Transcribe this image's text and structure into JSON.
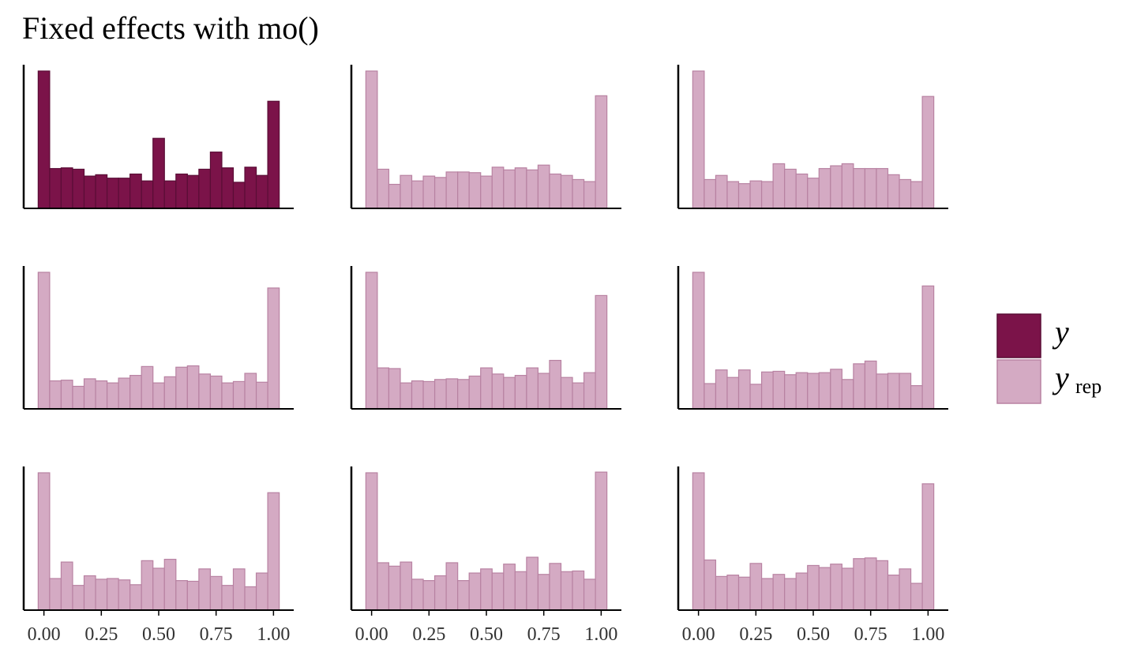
{
  "title": "Fixed effects with mo()",
  "colors": {
    "y_fill": "#7b1349",
    "y_stroke": "#5a0d36",
    "yrep_fill": "#d4aac3",
    "yrep_stroke": "#b882a2",
    "axis": "#000000"
  },
  "chart_data": {
    "type": "bar",
    "layout": "3x3 facet grid of histograms",
    "bin_centers": [
      0.0,
      0.05,
      0.1,
      0.15,
      0.2,
      0.25,
      0.3,
      0.35,
      0.4,
      0.45,
      0.5,
      0.55,
      0.6,
      0.65,
      0.7,
      0.75,
      0.8,
      0.85,
      0.9,
      0.95,
      1.0
    ],
    "xlim": [
      -0.04,
      1.04
    ],
    "x_ticks": [
      "0.00",
      "0.25",
      "0.50",
      "0.75",
      "1.00"
    ],
    "x_tick_values": [
      0.0,
      0.25,
      0.5,
      0.75,
      1.0
    ],
    "y_axis_labels": "none",
    "legend": {
      "placement": "right",
      "entries": [
        {
          "key": "y",
          "label": "y",
          "subscript": ""
        },
        {
          "key": "yrep",
          "label": "y",
          "subscript": "rep"
        }
      ]
    },
    "panels": [
      {
        "series": "y",
        "values": [
          100,
          29,
          29.5,
          28.5,
          23.5,
          24.5,
          22,
          22,
          25,
          20,
          51,
          20,
          25,
          24,
          28.5,
          41,
          29.5,
          19,
          30,
          24,
          78
        ]
      },
      {
        "series": "yrep",
        "values": [
          100,
          28.5,
          17.5,
          24,
          20,
          23.5,
          22.5,
          26.5,
          26.5,
          26,
          23.5,
          30,
          28,
          29.5,
          28,
          31.5,
          25,
          24,
          21,
          19.5,
          82
        ]
      },
      {
        "series": "yrep",
        "values": [
          100,
          21,
          24,
          19.5,
          18,
          20,
          19.5,
          32.5,
          28.5,
          25,
          22,
          29,
          31,
          32.5,
          29,
          29,
          29,
          24.5,
          21,
          19.5,
          81.5
        ]
      },
      {
        "series": "yrep",
        "values": [
          100,
          20.5,
          21,
          16.5,
          22,
          20.5,
          19,
          22.5,
          24.5,
          31,
          19,
          23.5,
          30.5,
          31.5,
          25.5,
          24,
          19,
          20,
          26,
          19.5,
          88.5
        ]
      },
      {
        "series": "yrep",
        "values": [
          100,
          30,
          29.5,
          19,
          20.5,
          20,
          21.5,
          22,
          21.5,
          24,
          30,
          25.5,
          23,
          24.5,
          30,
          26,
          35.5,
          23,
          19,
          26.5,
          83
        ]
      },
      {
        "series": "yrep",
        "values": [
          100,
          18.5,
          28.5,
          23,
          28.5,
          18,
          27,
          27.5,
          25,
          26.5,
          26,
          26.5,
          29,
          21.5,
          33,
          35,
          25.5,
          26,
          26,
          17,
          90
        ]
      },
      {
        "series": "yrep",
        "values": [
          100,
          23,
          35,
          18,
          25,
          22.5,
          23,
          22,
          18.5,
          36,
          30.5,
          37,
          21.5,
          21,
          30,
          24.5,
          18,
          30,
          17,
          27,
          85.5
        ]
      },
      {
        "series": "yrep",
        "values": [
          100,
          34.5,
          32,
          35,
          22.5,
          21.5,
          25,
          34.5,
          21.5,
          27,
          30,
          27,
          33.5,
          28,
          38.5,
          26,
          34,
          28,
          28.5,
          22.5,
          100.5
        ]
      },
      {
        "series": "yrep",
        "values": [
          100,
          36.5,
          24.5,
          25.5,
          24,
          34,
          23,
          26,
          23,
          27,
          32.5,
          31,
          33.5,
          30.5,
          37.5,
          38,
          36,
          25.5,
          30,
          19.5,
          92
        ]
      }
    ]
  }
}
